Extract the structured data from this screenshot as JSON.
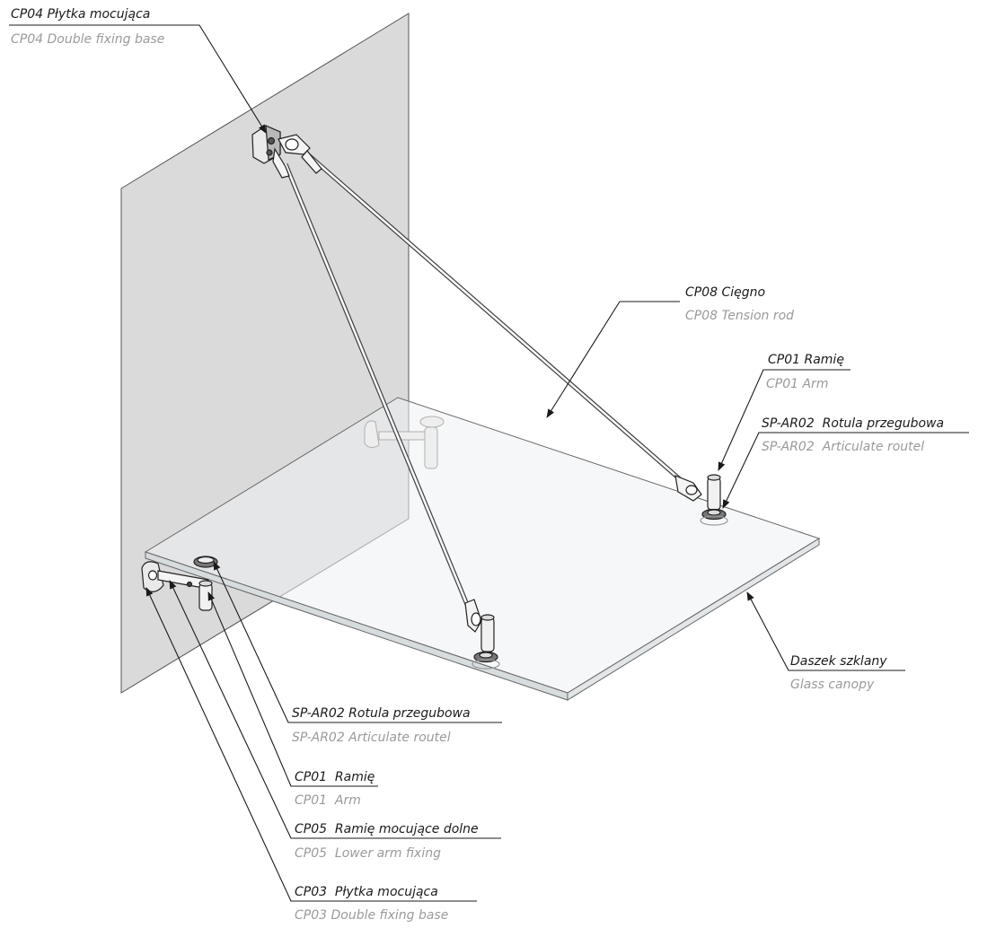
{
  "callouts": {
    "cp04_top": {
      "pl": "CP04 Płytka mocująca",
      "en": "CP04 Double fixing base"
    },
    "cp08": {
      "pl": "CP08 Cięgno",
      "en": "CP08 Tension rod"
    },
    "cp01_right": {
      "pl": "CP01 Ramię",
      "en": "CP01 Arm"
    },
    "spar02_right": {
      "pl": "SP-AR02  Rotula przegubowa",
      "en": "SP-AR02  Articulate routel"
    },
    "canopy": {
      "pl": "Daszek szklany",
      "en": "Glass canopy"
    },
    "spar02_left": {
      "pl": "SP-AR02 Rotula przegubowa",
      "en": "SP-AR02 Articulate routel"
    },
    "cp01_left": {
      "pl": "CP01  Ramię",
      "en": "CP01  Arm"
    },
    "cp05": {
      "pl": "CP05  Ramię mocujące dolne",
      "en": "CP05  Lower arm fixing"
    },
    "cp03": {
      "pl": "CP03  Płytka mocująca",
      "en": "CP03 Double fixing base"
    }
  },
  "colors": {
    "wall": "#dadada",
    "glass": "#eef1f2",
    "line": "#1a1a1a",
    "label_primary": "#1a1a1a",
    "label_secondary": "#9a9a9a"
  }
}
